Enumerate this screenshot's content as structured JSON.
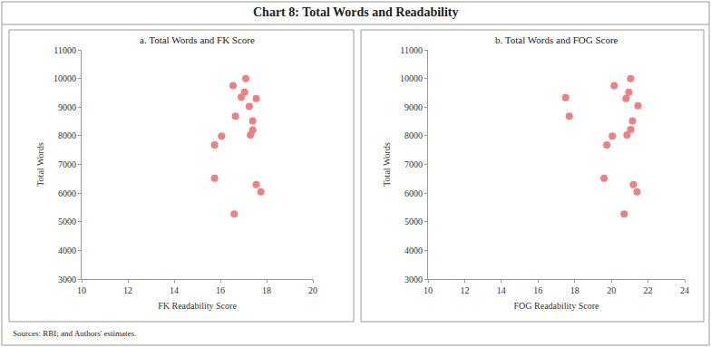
{
  "title": "Chart 8: Total Words and Readability",
  "source": "Sources: RBI; and Authors' estimates.",
  "chart_data": [
    {
      "type": "scatter",
      "title": "a. Total Words and FK Score",
      "x_label": "FK Readability Score",
      "y_label": "Total Words",
      "x": [
        16.55,
        17.1,
        17.05,
        16.9,
        17.55,
        16.65,
        17.25,
        17.4,
        17.4,
        17.3,
        16.05,
        15.75,
        15.75,
        17.55,
        17.75,
        16.6
      ],
      "values": [
        9750,
        10000,
        9520,
        9350,
        9300,
        8680,
        9020,
        8520,
        8200,
        8030,
        7990,
        7680,
        6520,
        6300,
        6040,
        5270
      ],
      "xlim": [
        10,
        20
      ],
      "xticks": [
        10,
        12,
        14,
        16,
        18,
        20
      ],
      "ylim": [
        3000,
        11000
      ],
      "yticks": [
        3000,
        4000,
        5000,
        6000,
        7000,
        8000,
        9000,
        10000,
        11000
      ],
      "color": "#f08080",
      "marker": "circle",
      "grid": false
    },
    {
      "type": "scatter",
      "title": "b. Total Words and FOG Score",
      "x_label": "FOG Readability Score",
      "y_label": "Total Words",
      "x": [
        20.15,
        21.05,
        20.95,
        20.8,
        17.5,
        17.7,
        21.45,
        21.15,
        21.05,
        20.85,
        20.05,
        19.75,
        19.6,
        21.2,
        21.4,
        20.7
      ],
      "values": [
        9750,
        10000,
        9520,
        9300,
        9330,
        8680,
        9050,
        8520,
        8220,
        8030,
        7990,
        7680,
        6520,
        6300,
        6040,
        5270
      ],
      "xlim": [
        10,
        24
      ],
      "xticks": [
        10,
        12,
        14,
        16,
        18,
        20,
        22,
        24
      ],
      "ylim": [
        3000,
        11000
      ],
      "yticks": [
        3000,
        4000,
        5000,
        6000,
        7000,
        8000,
        9000,
        10000,
        11000
      ],
      "color": "#f08080",
      "marker": "circle",
      "grid": false
    }
  ]
}
